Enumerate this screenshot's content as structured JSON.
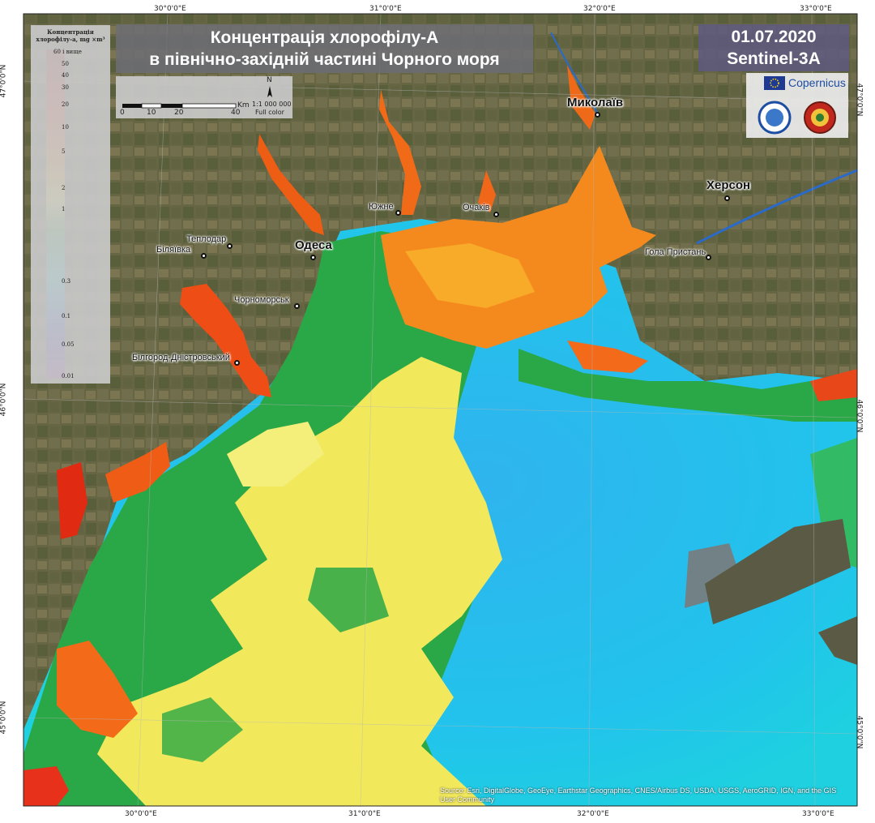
{
  "title": {
    "line1": "Концентрація хлорофілу-А",
    "line2": "в північно-західній частині Чорного моря"
  },
  "date_box": {
    "date": "01.07.2020",
    "satellite": "Sentinel-3A"
  },
  "legend": {
    "title_line1": "Концентрація",
    "title_line2": "хлорофілу-a, mg ×m³",
    "ticks": [
      "60 і вище",
      "50",
      "40",
      "30",
      "20",
      "10",
      "5",
      "2",
      "1",
      "0.3",
      "0.1",
      "0.05",
      "0.01"
    ],
    "colors": {
      "60": "#8b0000",
      "20": "#e8240c",
      "10": "#f7760f",
      "5": "#f9b21a",
      "2": "#f4ee5a",
      "1": "#2fa741",
      "0.3": "#19d4ea",
      "0.1": "#1b49e8",
      "0.05": "#4a1bc4",
      "0.01": "#8e1c9e"
    }
  },
  "scale_bar": {
    "unit": "Km",
    "labels": [
      "0",
      "10",
      "20",
      "40"
    ],
    "ratio": "1:1 000 000",
    "mode": "Full color",
    "north": "N"
  },
  "logos": {
    "copernicus": "Copernicus",
    "eu_flag_icon": "eu-flag-icon"
  },
  "graticule": {
    "top": [
      "30°0'0\"E",
      "31°0'0\"E",
      "32°0'0\"E",
      "33°0'0\"E"
    ],
    "bottom": [
      "30°0'0\"E",
      "31°0'0\"E",
      "32°0'0\"E",
      "33°0'0\"E"
    ],
    "left": [
      "47°0'0\"N",
      "46°0'0\"N",
      "45°0'0\"N"
    ],
    "right": [
      "47°0'0\"N",
      "46°0'0\"N",
      "45°0'0\"N"
    ]
  },
  "cities": {
    "mykolaiv": "Миколаїв",
    "kherson": "Херсон",
    "odesa": "Одеса",
    "yuzhne": "Южне",
    "ochakiv": "Очаків",
    "teplodar": "Теплодар",
    "biliaivka": "Біляївка",
    "chornomorsk": "Чорноморськ",
    "bilhorod": "Білгород-Дністровський",
    "hola_prystan": "Гола Пристань"
  },
  "attribution": "Source: Esri, DigitalGlobe, GeoEye, Earthstar Geographics, CNES/Airbus DS, USDA, USGS, AeroGRID, IGN, and the GIS User Community"
}
